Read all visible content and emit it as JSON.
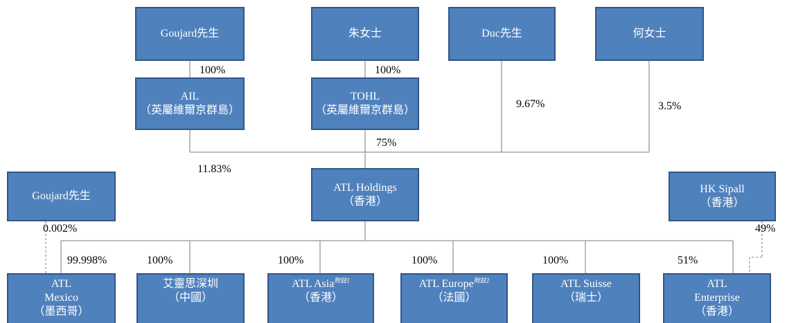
{
  "nodes": [
    {
      "lines": [
        "Goujard先生"
      ]
    },
    {
      "lines": [
        "朱女士"
      ]
    },
    {
      "lines": [
        "Duc先生"
      ]
    },
    {
      "lines": [
        "何女士"
      ]
    },
    {
      "lines": [
        "AIL",
        "（英屬維爾京群島）"
      ]
    },
    {
      "lines": [
        "TOHL",
        "（英屬維爾京群島）"
      ]
    },
    {
      "lines": [
        "Goujard先生"
      ]
    },
    {
      "lines": [
        "ATL Holdings",
        "（香港）"
      ]
    },
    {
      "lines": [
        "HK Sipall",
        "（香港）"
      ]
    },
    {
      "lines": [
        "ATL",
        "Mexico",
        "（墨西哥）"
      ]
    },
    {
      "lines": [
        "艾靈思深圳",
        "（中國）"
      ]
    },
    {
      "lines": [
        "ATL Asia",
        "（香港）"
      ],
      "note": "附註1"
    },
    {
      "lines": [
        "ATL Europe",
        "（法國）"
      ],
      "note": "附註2"
    },
    {
      "lines": [
        "ATL Suisse",
        "（瑞士）"
      ]
    },
    {
      "lines": [
        "ATL",
        "Enterprise",
        "（香港）"
      ]
    }
  ],
  "edges": [
    {
      "label": "100%"
    },
    {
      "label": "100%"
    },
    {
      "label": "9.67%"
    },
    {
      "label": "3.5%"
    },
    {
      "label": "75%"
    },
    {
      "label": "11.83%"
    },
    {
      "label": "0.002%"
    },
    {
      "label": "49%"
    },
    {
      "label": "99.998%"
    },
    {
      "label": "100%"
    },
    {
      "label": "100%"
    },
    {
      "label": "100%"
    },
    {
      "label": "100%"
    },
    {
      "label": "51%"
    }
  ]
}
